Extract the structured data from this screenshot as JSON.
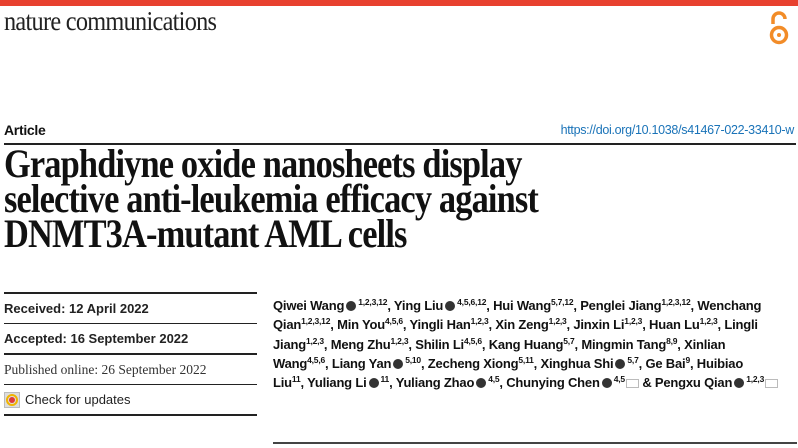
{
  "header": {
    "journal": "nature communications",
    "accent": "#e8412f",
    "open_access_icon": "open-access-lock",
    "open_access_color": "#f28c28"
  },
  "article": {
    "type": "Article",
    "doi": "https://doi.org/10.1038/s41467-022-33410-w",
    "title_lines": [
      "Graphdiyne oxide nanosheets display",
      "selective anti-leukemia efficacy against",
      "DNMT3A-mutant AML cells"
    ]
  },
  "dates": {
    "received": "Received: 12 April 2022",
    "accepted": "Accepted: 16 September 2022",
    "published": "Published online: 26 September 2022",
    "check_updates": "Check for updates"
  },
  "authors": [
    {
      "name": "Qiwei Wang",
      "orcid": true,
      "sup": "1,2,3,12",
      "sep": ", "
    },
    {
      "name": "Ying Liu",
      "orcid": true,
      "sup": "4,5,6,12",
      "sep": ", "
    },
    {
      "name": "Hui Wang",
      "sup": "5,7,12",
      "sep": ", "
    },
    {
      "name": "Penglei Jiang",
      "sup": "1,2,3,12",
      "sep": ", "
    },
    {
      "name": "Wenchang Qian",
      "sup": "1,2,3,12",
      "sep": ", "
    },
    {
      "name": "Min You",
      "sup": "4,5,6",
      "sep": ", "
    },
    {
      "name": "Yingli Han",
      "sup": "1,2,3",
      "sep": ", "
    },
    {
      "name": "Xin Zeng",
      "sup": "1,2,3",
      "sep": ", "
    },
    {
      "name": "Jinxin Li",
      "sup": "1,2,3",
      "sep": ", "
    },
    {
      "name": "Huan Lu",
      "sup": "1,2,3",
      "sep": ", "
    },
    {
      "name": "Lingli Jiang",
      "sup": "1,2,3",
      "sep": ", "
    },
    {
      "name": "Meng Zhu",
      "sup": "1,2,3",
      "sep": ", "
    },
    {
      "name": "Shilin Li",
      "sup": "4,5,6",
      "sep": ", "
    },
    {
      "name": "Kang Huang",
      "sup": "5,7",
      "sep": ", "
    },
    {
      "name": "Mingmin Tang",
      "sup": "8,9",
      "sep": ", "
    },
    {
      "name": "Xinlian Wang",
      "sup": "4,5,6",
      "sep": ", "
    },
    {
      "name": "Liang Yan",
      "orcid": true,
      "sup": "5,10",
      "sep": ", "
    },
    {
      "name": "Zecheng Xiong",
      "sup": "5,11",
      "sep": ", "
    },
    {
      "name": "Xinghua Shi",
      "orcid": true,
      "sup": "5,7",
      "sep": ", "
    },
    {
      "name": "Ge Bai",
      "sup": "9",
      "sep": ", "
    },
    {
      "name": "Huibiao Liu",
      "sup": "11",
      "sep": ", "
    },
    {
      "name": "Yuliang Li",
      "orcid": true,
      "sup": "11",
      "sep": ", "
    },
    {
      "name": "Yuliang Zhao",
      "orcid": true,
      "sup": "4,5",
      "sep": ", "
    },
    {
      "name": "Chunying Chen",
      "orcid": true,
      "sup": "4,5",
      "email": true,
      "sep": " & "
    },
    {
      "name": "Pengxu Qian",
      "orcid": true,
      "sup": "1,2,3",
      "email": true,
      "sep": ""
    }
  ]
}
